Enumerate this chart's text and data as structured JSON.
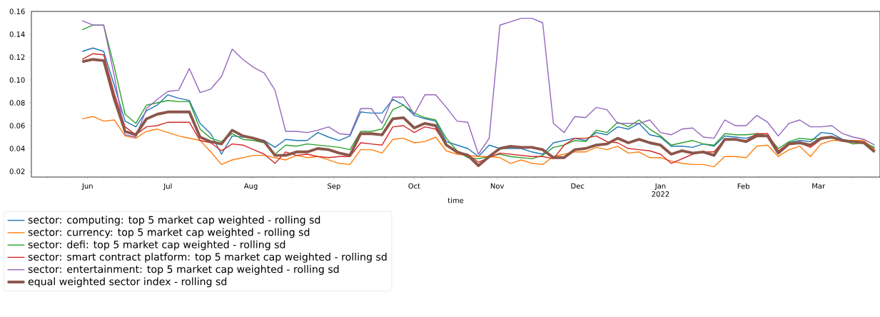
{
  "chart_data": {
    "type": "line",
    "xlabel": "time",
    "xlim": [
      "2021-05-11",
      "2022-03-24"
    ],
    "xticks": [
      {
        "value": "2021-06-01",
        "label": "Jun"
      },
      {
        "value": "2021-07-01",
        "label": "Jul"
      },
      {
        "value": "2021-08-01",
        "label": "Aug"
      },
      {
        "value": "2021-09-01",
        "label": "Sep"
      },
      {
        "value": "2021-10-01",
        "label": "Oct"
      },
      {
        "value": "2021-11-01",
        "label": "Nov"
      },
      {
        "value": "2021-12-01",
        "label": "Dec"
      },
      {
        "value": "2022-01-01",
        "label": "Jan 2022"
      },
      {
        "value": "2022-02-01",
        "label": "Feb"
      },
      {
        "value": "2022-03-01",
        "label": "Mar"
      },
      {
        "value": "2021-05-17",
        "label": null
      },
      {
        "value": "2021-05-24",
        "label": null
      },
      {
        "value": "2021-05-31",
        "label": null
      },
      {
        "value": "2021-06-07",
        "label": null
      },
      {
        "value": "2021-06-14",
        "label": null
      },
      {
        "value": "2021-06-21",
        "label": null
      },
      {
        "value": "2021-06-28",
        "label": null
      },
      {
        "value": "2021-07-05",
        "label": null
      },
      {
        "value": "2021-07-12",
        "label": null
      },
      {
        "value": "2021-07-19",
        "label": null
      },
      {
        "value": "2021-07-26",
        "label": null
      },
      {
        "value": "2021-08-02",
        "label": null
      },
      {
        "value": "2021-08-09",
        "label": null
      },
      {
        "value": "2021-08-16",
        "label": null
      },
      {
        "value": "2021-08-23",
        "label": null
      },
      {
        "value": "2021-08-30",
        "label": null
      },
      {
        "value": "2021-09-06",
        "label": null
      },
      {
        "value": "2021-09-13",
        "label": null
      },
      {
        "value": "2021-09-20",
        "label": null
      },
      {
        "value": "2021-09-27",
        "label": null
      },
      {
        "value": "2021-10-04",
        "label": null
      },
      {
        "value": "2021-10-11",
        "label": null
      },
      {
        "value": "2021-10-18",
        "label": null
      },
      {
        "value": "2021-10-25",
        "label": null
      },
      {
        "value": "2021-11-08",
        "label": null
      },
      {
        "value": "2021-11-15",
        "label": null
      },
      {
        "value": "2021-11-22",
        "label": null
      },
      {
        "value": "2021-11-29",
        "label": null
      },
      {
        "value": "2021-12-06",
        "label": null
      },
      {
        "value": "2021-12-13",
        "label": null
      },
      {
        "value": "2021-12-20",
        "label": null
      },
      {
        "value": "2021-12-27",
        "label": null
      },
      {
        "value": "2022-01-03",
        "label": null
      },
      {
        "value": "2022-01-10",
        "label": null
      },
      {
        "value": "2022-01-17",
        "label": null
      },
      {
        "value": "2022-01-24",
        "label": null
      },
      {
        "value": "2022-01-31",
        "label": null
      },
      {
        "value": "2022-02-07",
        "label": null
      },
      {
        "value": "2022-02-14",
        "label": null
      },
      {
        "value": "2022-02-21",
        "label": null
      },
      {
        "value": "2022-02-28",
        "label": null
      },
      {
        "value": "2022-03-07",
        "label": null
      },
      {
        "value": "2022-03-14",
        "label": null
      },
      {
        "value": "2022-03-21",
        "label": null
      }
    ],
    "ylim": [
      0.015,
      0.16
    ],
    "yticks": [
      0.02,
      0.04,
      0.06,
      0.08,
      {
        "value": 0.1,
        "label": "0.10"
      },
      0.12,
      0.14,
      0.16
    ],
    "legend": "bottom left",
    "x": [
      "2021-05-30",
      "2021-06-03",
      "2021-06-07",
      "2021-06-11",
      "2021-06-15",
      "2021-06-19",
      "2021-06-23",
      "2021-06-27",
      "2021-07-01",
      "2021-07-05",
      "2021-07-09",
      "2021-07-13",
      "2021-07-17",
      "2021-07-21",
      "2021-07-25",
      "2021-07-29",
      "2021-08-02",
      "2021-08-06",
      "2021-08-10",
      "2021-08-14",
      "2021-08-18",
      "2021-08-22",
      "2021-08-26",
      "2021-08-30",
      "2021-09-03",
      "2021-09-07",
      "2021-09-11",
      "2021-09-15",
      "2021-09-19",
      "2021-09-23",
      "2021-09-27",
      "2021-10-01",
      "2021-10-05",
      "2021-10-09",
      "2021-10-13",
      "2021-10-17",
      "2021-10-21",
      "2021-10-25",
      "2021-10-29",
      "2021-11-02",
      "2021-11-06",
      "2021-11-10",
      "2021-11-14",
      "2021-11-18",
      "2021-11-22",
      "2021-11-26",
      "2021-11-30",
      "2021-12-04",
      "2021-12-08",
      "2021-12-12",
      "2021-12-16",
      "2021-12-20",
      "2021-12-24",
      "2021-12-28",
      "2022-01-01",
      "2022-01-05",
      "2022-01-09",
      "2022-01-13",
      "2022-01-17",
      "2022-01-21",
      "2022-01-25",
      "2022-01-29",
      "2022-02-02",
      "2022-02-06",
      "2022-02-10",
      "2022-02-14",
      "2022-02-18",
      "2022-02-22",
      "2022-02-26",
      "2022-03-02",
      "2022-03-06",
      "2022-03-10",
      "2022-03-14",
      "2022-03-18",
      "2022-03-22"
    ],
    "series": [
      {
        "name": "sector: computing: top 5 market cap weighted - rolling sd",
        "color": "#1f77b4",
        "values": [
          0.125,
          0.128,
          0.125,
          0.095,
          0.064,
          0.059,
          0.073,
          0.078,
          0.087,
          0.084,
          0.082,
          0.062,
          0.053,
          0.035,
          0.051,
          0.05,
          0.049,
          0.047,
          0.041,
          0.048,
          0.047,
          0.047,
          0.054,
          0.05,
          0.047,
          0.051,
          0.072,
          0.071,
          0.071,
          0.083,
          0.078,
          0.069,
          0.066,
          0.064,
          0.046,
          0.043,
          0.04,
          0.033,
          0.043,
          0.04,
          0.04,
          0.04,
          0.037,
          0.035,
          0.045,
          0.047,
          0.049,
          0.047,
          0.054,
          0.052,
          0.059,
          0.057,
          0.062,
          0.052,
          0.05,
          0.042,
          0.042,
          0.041,
          0.044,
          0.042,
          0.051,
          0.05,
          0.049,
          0.052,
          0.051,
          0.036,
          0.045,
          0.047,
          0.046,
          0.054,
          0.053,
          0.048,
          0.046,
          0.045,
          0.04
        ]
      },
      {
        "name": "sector: currency: top 5 market cap weighted - rolling sd",
        "color": "#ff7f0e",
        "values": [
          0.066,
          0.068,
          0.064,
          0.065,
          0.051,
          0.049,
          0.055,
          0.057,
          0.054,
          0.051,
          0.049,
          0.047,
          0.037,
          0.026,
          0.03,
          0.032,
          0.034,
          0.034,
          0.032,
          0.03,
          0.034,
          0.032,
          0.033,
          0.03,
          0.027,
          0.026,
          0.039,
          0.039,
          0.036,
          0.048,
          0.049,
          0.045,
          0.046,
          0.05,
          0.038,
          0.035,
          0.034,
          0.033,
          0.033,
          0.032,
          0.027,
          0.03,
          0.027,
          0.026,
          0.033,
          0.035,
          0.037,
          0.037,
          0.041,
          0.039,
          0.042,
          0.036,
          0.037,
          0.032,
          0.032,
          0.029,
          0.027,
          0.026,
          0.026,
          0.024,
          0.033,
          0.033,
          0.032,
          0.042,
          0.043,
          0.033,
          0.039,
          0.042,
          0.033,
          0.044,
          0.047,
          0.047,
          0.047,
          0.047,
          0.039
        ]
      },
      {
        "name": "sector: defi: top 5 market cap weighted - rolling sd",
        "color": "#2ca02c",
        "values": [
          0.144,
          0.148,
          0.148,
          0.111,
          0.07,
          0.062,
          0.078,
          0.08,
          0.082,
          0.081,
          0.081,
          0.057,
          0.049,
          0.046,
          0.053,
          0.048,
          0.047,
          0.045,
          0.035,
          0.043,
          0.042,
          0.044,
          0.043,
          0.042,
          0.041,
          0.039,
          0.055,
          0.055,
          0.057,
          0.074,
          0.078,
          0.071,
          0.067,
          0.065,
          0.049,
          0.038,
          0.032,
          0.031,
          0.033,
          0.035,
          0.033,
          0.032,
          0.031,
          0.034,
          0.041,
          0.043,
          0.047,
          0.046,
          0.056,
          0.054,
          0.063,
          0.059,
          0.065,
          0.057,
          0.051,
          0.043,
          0.045,
          0.047,
          0.044,
          0.043,
          0.053,
          0.052,
          0.052,
          0.053,
          0.051,
          0.04,
          0.046,
          0.049,
          0.048,
          0.049,
          0.049,
          0.047,
          0.044,
          0.045,
          0.041
        ]
      },
      {
        "name": "sector: smart contract platform: top 5 market cap weighted - rolling sd",
        "color": "#d62728",
        "values": [
          0.118,
          0.123,
          0.122,
          0.088,
          0.059,
          0.052,
          0.059,
          0.06,
          0.063,
          0.063,
          0.063,
          0.047,
          0.045,
          0.038,
          0.044,
          0.043,
          0.039,
          0.035,
          0.027,
          0.037,
          0.034,
          0.035,
          0.033,
          0.032,
          0.033,
          0.033,
          0.045,
          0.044,
          0.043,
          0.059,
          0.06,
          0.054,
          0.059,
          0.057,
          0.043,
          0.036,
          0.035,
          0.028,
          0.032,
          0.036,
          0.035,
          0.034,
          0.033,
          0.033,
          0.031,
          0.043,
          0.049,
          0.049,
          0.051,
          0.046,
          0.045,
          0.04,
          0.039,
          0.038,
          0.035,
          0.027,
          0.031,
          0.035,
          0.037,
          0.037,
          0.048,
          0.048,
          0.047,
          0.053,
          0.053,
          0.038,
          0.045,
          0.045,
          0.041,
          0.048,
          0.05,
          0.047,
          0.046,
          0.045,
          0.038
        ]
      },
      {
        "name": "sector: entertainment: top 5 market cap weighted - rolling sd",
        "color": "#9467bd",
        "values": [
          0.152,
          0.148,
          0.148,
          0.103,
          0.052,
          0.05,
          0.075,
          0.083,
          0.09,
          0.091,
          0.11,
          0.089,
          0.092,
          0.103,
          0.127,
          0.118,
          0.111,
          0.106,
          0.091,
          0.055,
          0.055,
          0.054,
          0.056,
          0.059,
          0.053,
          0.052,
          0.075,
          0.075,
          0.062,
          0.085,
          0.085,
          0.07,
          0.087,
          0.087,
          0.076,
          0.064,
          0.063,
          0.035,
          0.049,
          0.148,
          0.151,
          0.154,
          0.154,
          0.15,
          0.062,
          0.054,
          0.068,
          0.067,
          0.076,
          0.074,
          0.062,
          0.062,
          0.062,
          0.065,
          0.054,
          0.052,
          0.057,
          0.058,
          0.05,
          0.049,
          0.065,
          0.06,
          0.06,
          0.069,
          0.063,
          0.051,
          0.062,
          0.065,
          0.059,
          0.059,
          0.06,
          0.053,
          0.05,
          0.048,
          0.043
        ]
      },
      {
        "name": "equal weighted sector index - rolling sd",
        "color": "#8c564b",
        "values": [
          0.116,
          0.118,
          0.117,
          0.083,
          0.055,
          0.052,
          0.066,
          0.07,
          0.072,
          0.072,
          0.072,
          0.05,
          0.046,
          0.044,
          0.056,
          0.051,
          0.049,
          0.046,
          0.034,
          0.034,
          0.037,
          0.037,
          0.04,
          0.039,
          0.036,
          0.034,
          0.053,
          0.053,
          0.052,
          0.066,
          0.067,
          0.058,
          0.062,
          0.06,
          0.043,
          0.037,
          0.034,
          0.025,
          0.033,
          0.04,
          0.042,
          0.041,
          0.041,
          0.039,
          0.032,
          0.032,
          0.039,
          0.04,
          0.043,
          0.044,
          0.049,
          0.045,
          0.048,
          0.045,
          0.043,
          0.035,
          0.038,
          0.036,
          0.037,
          0.034,
          0.048,
          0.048,
          0.046,
          0.051,
          0.051,
          0.036,
          0.044,
          0.045,
          0.043,
          0.049,
          0.05,
          0.047,
          0.046,
          0.045,
          0.037
        ]
      }
    ]
  }
}
